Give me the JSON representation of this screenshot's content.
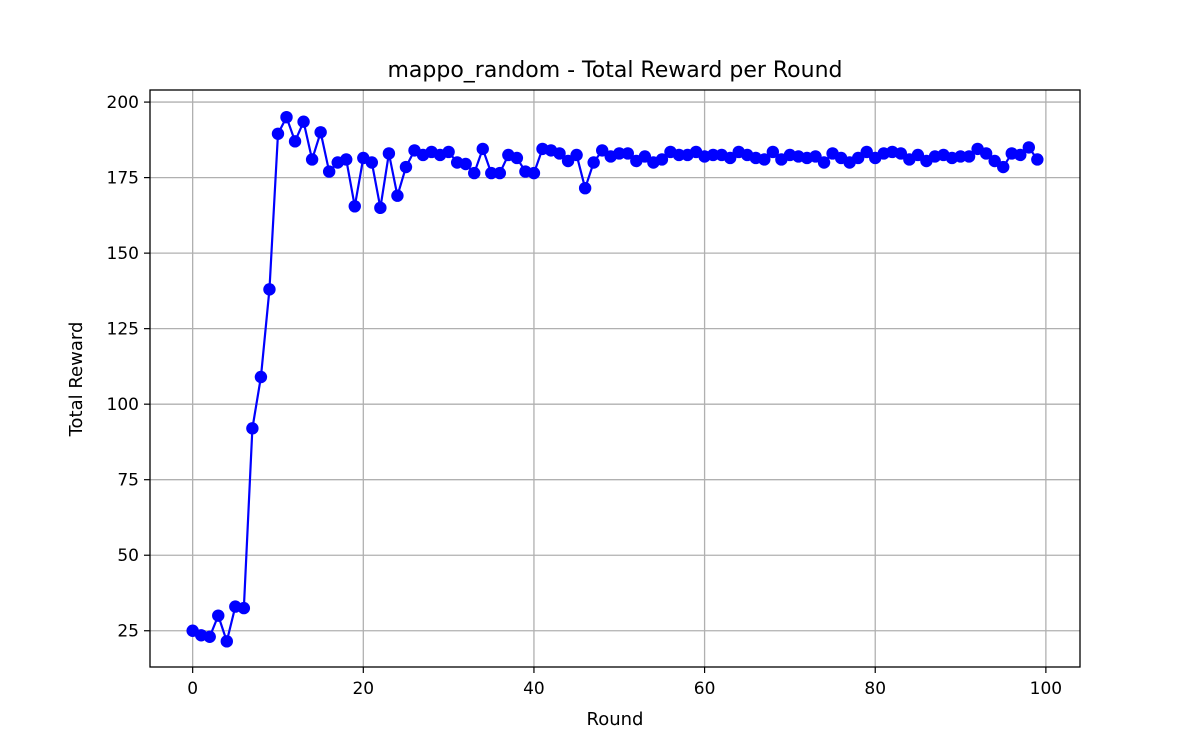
{
  "chart_data": {
    "type": "line",
    "title": "mappo_random - Total Reward per Round",
    "xlabel": "Round",
    "ylabel": "Total Reward",
    "xlim": [
      -5,
      104
    ],
    "ylim": [
      13,
      204
    ],
    "xticks": [
      0,
      20,
      40,
      60,
      80,
      100
    ],
    "yticks": [
      25,
      50,
      75,
      100,
      125,
      150,
      175,
      200
    ],
    "grid": true,
    "line_color": "#0000ff",
    "marker": "circle",
    "series": [
      {
        "x": [
          0,
          1,
          2,
          3,
          4,
          5,
          6,
          7,
          8,
          9,
          10,
          11,
          12,
          13,
          14,
          15,
          16,
          17,
          18,
          19,
          20,
          21,
          22,
          23,
          24,
          25,
          26,
          27,
          28,
          29,
          30,
          31,
          32,
          33,
          34,
          35,
          36,
          37,
          38,
          39,
          40,
          41,
          42,
          43,
          44,
          45,
          46,
          47,
          48,
          49,
          50,
          51,
          52,
          53,
          54,
          55,
          56,
          57,
          58,
          59,
          60,
          61,
          62,
          63,
          64,
          65,
          66,
          67,
          68,
          69,
          70,
          71,
          72,
          73,
          74,
          75,
          76,
          77,
          78,
          79,
          80,
          81,
          82,
          83,
          84,
          85,
          86,
          87,
          88,
          89,
          90,
          91,
          92,
          93,
          94,
          95,
          96,
          97,
          98,
          99
        ],
        "values": [
          25,
          23.5,
          23,
          30,
          21.5,
          33,
          32.5,
          92,
          109,
          138,
          189.5,
          195,
          187,
          193.5,
          181,
          190,
          177,
          180,
          181,
          165.5,
          181.5,
          180,
          165,
          183,
          169,
          178.5,
          184,
          182.5,
          183.5,
          182.5,
          183.5,
          180,
          179.5,
          176.5,
          184.5,
          176.5,
          176.5,
          182.5,
          181.5,
          177,
          176.5,
          184.5,
          184,
          183,
          180.5,
          182.5,
          171.5,
          180,
          184,
          182,
          183,
          183,
          180.5,
          182,
          180,
          181,
          183.5,
          182.5,
          182.5,
          183.5,
          182,
          182.5,
          182.5,
          181.5,
          183.5,
          182.5,
          181.5,
          181,
          183.5,
          181,
          182.5,
          182,
          181.5,
          182,
          180,
          183,
          181.5,
          180,
          181.5,
          183.5,
          181.5,
          183,
          183.5,
          183,
          181,
          182.5,
          180.5,
          182,
          182.5,
          181.5,
          182,
          182,
          184.5,
          183,
          180.5,
          178.5,
          183,
          182.5,
          185,
          181
        ]
      }
    ]
  }
}
